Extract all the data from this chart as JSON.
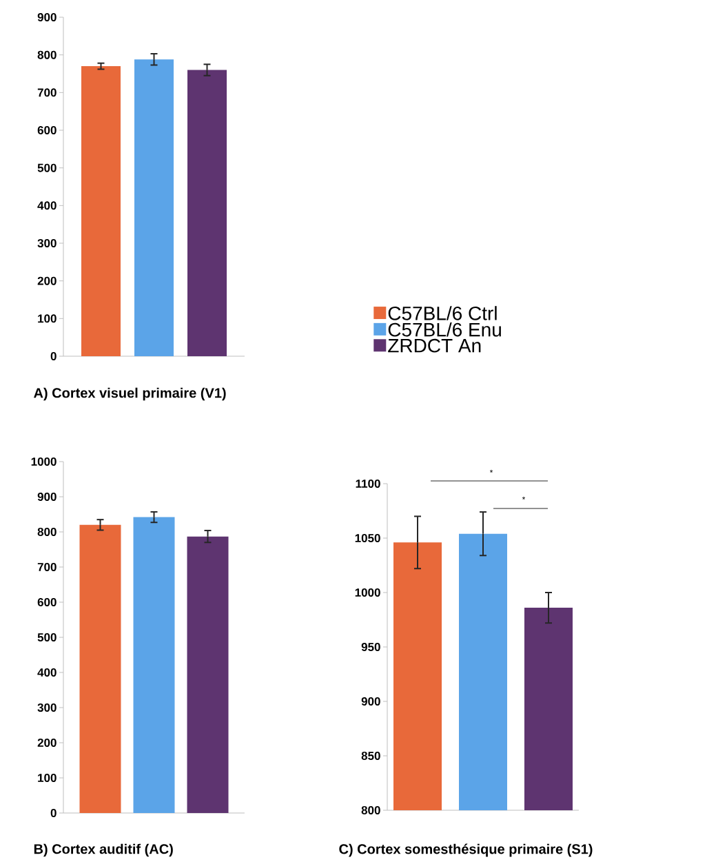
{
  "chart_data": [
    {
      "type": "bar",
      "title": "A)  Cortex visuel primaire (V1)",
      "categories": [
        null
      ],
      "legend": "right",
      "ylim": [
        0,
        900
      ],
      "yticks": [
        0,
        100,
        200,
        300,
        400,
        500,
        600,
        700,
        800,
        900
      ],
      "series": [
        {
          "name": "C57BL/6 Ctrl",
          "color": "#e8693a",
          "values": [
            770
          ],
          "errors": [
            8
          ]
        },
        {
          "name": "C57BL/6 Enu",
          "color": "#5ba4e8",
          "values": [
            788
          ],
          "errors": [
            15
          ]
        },
        {
          "name": "ZRDCT An",
          "color": "#5e3470",
          "values": [
            760
          ],
          "errors": [
            15
          ]
        }
      ]
    },
    {
      "type": "bar",
      "title": "B)  Cortex auditif (AC)",
      "categories": [
        null
      ],
      "ylim": [
        0,
        1000
      ],
      "yticks": [
        0,
        100,
        200,
        300,
        400,
        500,
        600,
        700,
        800,
        900,
        1000
      ],
      "series": [
        {
          "color": "#e8693a",
          "values": [
            820
          ],
          "errors": [
            15
          ]
        },
        {
          "color": "#5ba4e8",
          "values": [
            842
          ],
          "errors": [
            15
          ]
        },
        {
          "color": "#5e3470",
          "values": [
            787
          ],
          "errors": [
            17
          ]
        }
      ]
    },
    {
      "type": "bar",
      "title": "C)  Cortex somesthésique primaire (S1)",
      "categories": [
        null
      ],
      "ylim": [
        800,
        1100
      ],
      "yticks": [
        800,
        850,
        900,
        950,
        1000,
        1050,
        1100
      ],
      "annotations": [
        "*",
        "*"
      ],
      "series": [
        {
          "color": "#e8693a",
          "values": [
            1046
          ],
          "errors": [
            24
          ]
        },
        {
          "color": "#5ba4e8",
          "values": [
            1054
          ],
          "errors": [
            20
          ]
        },
        {
          "color": "#5e3470",
          "values": [
            986
          ],
          "errors": [
            14
          ]
        }
      ]
    }
  ]
}
